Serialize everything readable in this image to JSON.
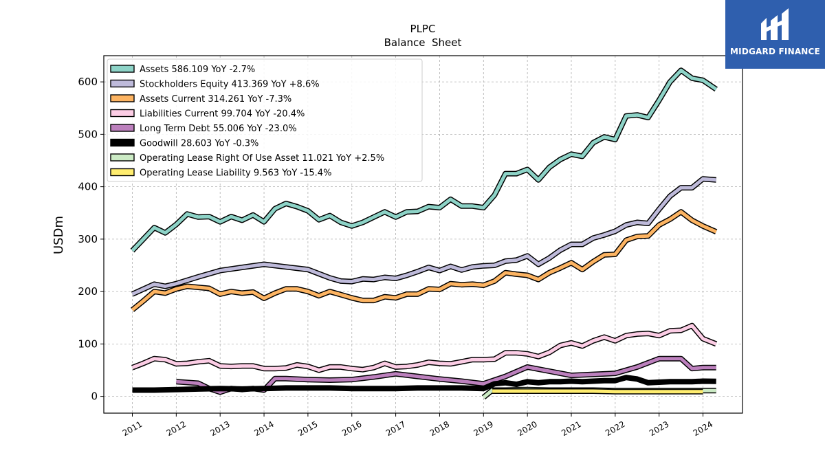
{
  "brand": {
    "name": "MIDGARD FINANCE",
    "bg_color": "#2f5fae"
  },
  "chart_data": {
    "type": "line",
    "title": "PLPC",
    "subtitle": "Balance  Sheet",
    "ylabel": "USDm",
    "xlabel": "",
    "xlim": [
      2010.35,
      2024.9
    ],
    "ylim": [
      -32,
      650
    ],
    "yticks": [
      0,
      100,
      200,
      300,
      400,
      500,
      600
    ],
    "xticks": [
      2011,
      2012,
      2013,
      2014,
      2015,
      2016,
      2017,
      2018,
      2019,
      2020,
      2021,
      2022,
      2023,
      2024
    ],
    "grid": true,
    "legend_position": "top-left",
    "series": [
      {
        "name": "Assets",
        "legend": "Assets  586.109 YoY -2.7%",
        "color": "#8dd3c7",
        "width": 5,
        "x": [
          2011.0,
          2011.25,
          2011.5,
          2011.75,
          2012.0,
          2012.25,
          2012.5,
          2012.75,
          2013.0,
          2013.25,
          2013.5,
          2013.75,
          2014.0,
          2014.25,
          2014.5,
          2014.75,
          2015.0,
          2015.25,
          2015.5,
          2015.75,
          2016.0,
          2016.25,
          2016.5,
          2016.75,
          2017.0,
          2017.25,
          2017.5,
          2017.75,
          2018.0,
          2018.25,
          2018.5,
          2018.75,
          2019.0,
          2019.25,
          2019.5,
          2019.75,
          2020.0,
          2020.25,
          2020.5,
          2020.75,
          2021.0,
          2021.25,
          2021.5,
          2021.75,
          2022.0,
          2022.25,
          2022.5,
          2022.75,
          2023.0,
          2023.25,
          2023.5,
          2023.75,
          2024.0,
          2024.3
        ],
        "y": [
          278,
          300,
          322,
          312,
          328,
          348,
          342,
          343,
          333,
          343,
          336,
          346,
          333,
          358,
          368,
          362,
          354,
          337,
          345,
          332,
          325,
          332,
          342,
          352,
          342,
          352,
          353,
          362,
          360,
          376,
          363,
          363,
          360,
          384,
          425,
          425,
          433,
          413,
          437,
          452,
          462,
          458,
          484,
          495,
          490,
          535,
          537,
          532,
          565,
          600,
          622,
          607,
          603,
          586
        ]
      },
      {
        "name": "Stockholders Equity",
        "legend": "Stockholders Equity  413.369 YoY +8.6%",
        "color": "#bebada",
        "width": 5,
        "x": [
          2011.0,
          2011.5,
          2011.75,
          2012.0,
          2012.5,
          2013.0,
          2013.5,
          2014.0,
          2014.5,
          2015.0,
          2015.25,
          2015.5,
          2015.75,
          2016.0,
          2016.25,
          2016.5,
          2016.75,
          2017.0,
          2017.25,
          2017.5,
          2017.75,
          2018.0,
          2018.25,
          2018.5,
          2018.75,
          2019.0,
          2019.25,
          2019.5,
          2019.75,
          2020.0,
          2020.25,
          2020.5,
          2020.75,
          2021.0,
          2021.25,
          2021.5,
          2021.75,
          2022.0,
          2022.25,
          2022.5,
          2022.75,
          2023.0,
          2023.25,
          2023.5,
          2023.75,
          2024.0,
          2024.3
        ],
        "y": [
          195,
          214,
          210,
          215,
          228,
          240,
          246,
          252,
          247,
          242,
          234,
          226,
          220,
          219,
          224,
          223,
          227,
          225,
          231,
          238,
          246,
          240,
          248,
          241,
          247,
          249,
          250,
          258,
          260,
          268,
          252,
          264,
          279,
          290,
          290,
          302,
          308,
          315,
          327,
          332,
          330,
          357,
          382,
          398,
          398,
          415,
          413
        ]
      },
      {
        "name": "Assets Current",
        "legend": "Assets Current  314.261 YoY -7.3%",
        "color": "#fdb462",
        "width": 5,
        "x": [
          2011.0,
          2011.25,
          2011.5,
          2011.75,
          2012.0,
          2012.25,
          2012.5,
          2012.75,
          2013.0,
          2013.25,
          2013.5,
          2013.75,
          2014.0,
          2014.25,
          2014.5,
          2014.75,
          2015.0,
          2015.25,
          2015.5,
          2015.75,
          2016.0,
          2016.25,
          2016.5,
          2016.75,
          2017.0,
          2017.25,
          2017.5,
          2017.75,
          2018.0,
          2018.25,
          2018.5,
          2018.75,
          2019.0,
          2019.25,
          2019.5,
          2019.75,
          2020.0,
          2020.25,
          2020.5,
          2020.75,
          2021.0,
          2021.25,
          2021.5,
          2021.75,
          2022.0,
          2022.25,
          2022.5,
          2022.75,
          2023.0,
          2023.25,
          2023.5,
          2023.75,
          2024.0,
          2024.3
        ],
        "y": [
          165,
          182,
          200,
          197,
          205,
          210,
          208,
          206,
          195,
          200,
          197,
          199,
          187,
          197,
          205,
          205,
          200,
          192,
          200,
          194,
          188,
          183,
          183,
          190,
          188,
          195,
          195,
          205,
          204,
          215,
          213,
          214,
          212,
          220,
          236,
          233,
          231,
          223,
          236,
          245,
          255,
          242,
          257,
          270,
          271,
          298,
          305,
          306,
          327,
          338,
          352,
          336,
          325,
          314
        ]
      },
      {
        "name": "Liabilities Current",
        "legend": "Liabilities Current  99.704 YoY -20.4%",
        "color": "#fccde5",
        "width": 5,
        "x": [
          2011.0,
          2011.25,
          2011.5,
          2011.75,
          2012.0,
          2012.25,
          2012.5,
          2012.75,
          2013.0,
          2013.25,
          2013.5,
          2013.75,
          2014.0,
          2014.25,
          2014.5,
          2014.75,
          2015.0,
          2015.25,
          2015.5,
          2015.75,
          2016.0,
          2016.25,
          2016.5,
          2016.75,
          2017.0,
          2017.25,
          2017.5,
          2017.75,
          2018.0,
          2018.25,
          2018.5,
          2018.75,
          2019.0,
          2019.25,
          2019.5,
          2019.75,
          2020.0,
          2020.25,
          2020.5,
          2020.75,
          2021.0,
          2021.25,
          2021.5,
          2021.75,
          2022.0,
          2022.25,
          2022.5,
          2022.75,
          2023.0,
          2023.25,
          2023.5,
          2023.75,
          2024.0,
          2024.3
        ],
        "y": [
          55,
          63,
          72,
          70,
          62,
          63,
          66,
          68,
          58,
          57,
          58,
          58,
          53,
          53,
          54,
          60,
          57,
          50,
          56,
          56,
          53,
          51,
          55,
          63,
          56,
          57,
          60,
          65,
          63,
          62,
          66,
          70,
          70,
          71,
          83,
          83,
          81,
          76,
          84,
          97,
          102,
          96,
          106,
          113,
          106,
          116,
          119,
          120,
          116,
          125,
          126,
          135,
          110,
          100
        ]
      },
      {
        "name": "Long Term Debt",
        "legend": "Long Term Debt  55.006 YoY -23.0%",
        "color": "#bc80bd",
        "width": 5,
        "x": [
          2012.0,
          2012.5,
          2012.75,
          2013.0,
          2013.25,
          2013.5,
          2013.75,
          2014.0,
          2014.25,
          2014.5,
          2015.0,
          2015.5,
          2016.0,
          2016.5,
          2017.0,
          2017.5,
          2018.0,
          2018.5,
          2019.0,
          2019.5,
          2020.0,
          2020.5,
          2021.0,
          2021.5,
          2022.0,
          2022.5,
          2023.0,
          2023.5,
          2023.75,
          2024.0,
          2024.3
        ],
        "y": [
          28,
          25,
          15,
          8,
          15,
          13,
          15,
          12,
          34,
          34,
          32,
          31,
          32,
          37,
          43,
          38,
          33,
          29,
          24,
          38,
          56,
          48,
          40,
          42,
          44,
          56,
          72,
          72,
          53,
          55,
          55
        ]
      },
      {
        "name": "Goodwill",
        "legend": "Goodwill  28.603 YoY -0.3%",
        "color": "#000000",
        "width": 8,
        "x": [
          2011.0,
          2011.5,
          2012.0,
          2012.5,
          2013.0,
          2013.5,
          2014.0,
          2014.5,
          2015.0,
          2015.5,
          2016.0,
          2016.5,
          2017.0,
          2017.5,
          2018.0,
          2018.5,
          2019.0,
          2019.25,
          2019.5,
          2019.75,
          2020.0,
          2020.25,
          2020.5,
          2020.75,
          2021.0,
          2021.25,
          2021.5,
          2021.75,
          2022.0,
          2022.25,
          2022.5,
          2022.75,
          2023.0,
          2023.25,
          2023.5,
          2023.75,
          2024.0,
          2024.3
        ],
        "y": [
          12,
          12,
          13,
          14,
          15,
          14,
          15,
          16,
          16,
          16,
          15,
          15,
          15,
          16,
          16,
          16,
          15,
          24,
          26,
          23,
          28,
          26,
          28,
          28,
          29,
          28,
          29,
          30,
          30,
          36,
          33,
          26,
          27,
          28,
          28,
          28,
          29,
          28.6
        ]
      },
      {
        "name": "Operating Lease Right Of Use Asset",
        "legend": "Operating Lease Right Of Use Asset  11.021 YoY +2.5%",
        "color": "#ccebc5",
        "width": 5,
        "x": [
          2019.0,
          2019.2,
          2019.5,
          2020.0,
          2020.5,
          2021.0,
          2021.5,
          2022.0,
          2022.5,
          2023.0,
          2023.5,
          2024.0,
          2024.3
        ],
        "y": [
          -2,
          12,
          12,
          13,
          12,
          12,
          12,
          11,
          11,
          11,
          11,
          11,
          11
        ]
      },
      {
        "name": "Operating Lease Liability",
        "legend": "Operating Lease Liability  9.563 YoY -15.4%",
        "color": "#ffed6f",
        "width": 5,
        "x": [
          2019.2,
          2019.5,
          2020.0,
          2020.5,
          2021.0,
          2021.5,
          2022.0,
          2022.5,
          2023.0,
          2023.5,
          2024.0
        ],
        "y": [
          10,
          10,
          10,
          10,
          10,
          10,
          9,
          9,
          9,
          9,
          9
        ]
      }
    ]
  }
}
